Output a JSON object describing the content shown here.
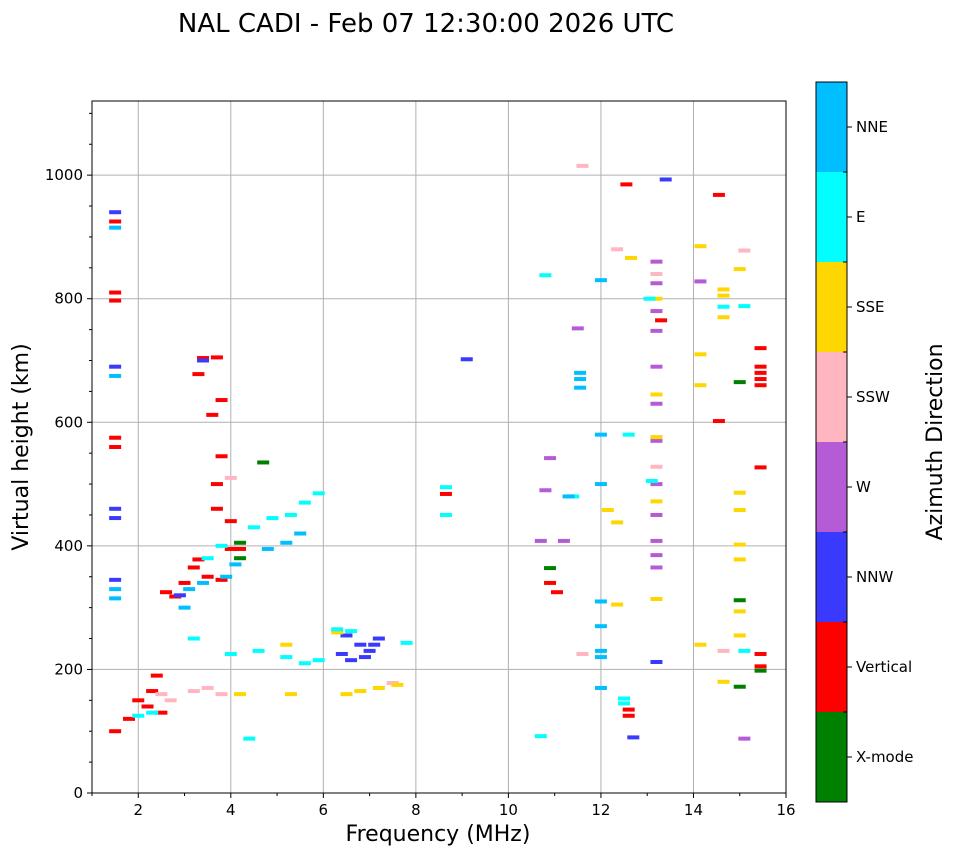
{
  "chart_data": {
    "type": "scatter",
    "title": "NAL CADI - Feb 07 12:30:00 2026 UTC",
    "xlabel": "Frequency (MHz)",
    "ylabel": "Virtual height (km)",
    "xlim": [
      1,
      16
    ],
    "ylim": [
      0,
      1120
    ],
    "x_ticks": [
      2,
      4,
      6,
      8,
      10,
      12,
      14,
      16
    ],
    "y_ticks": [
      0,
      200,
      400,
      600,
      800,
      1000
    ],
    "x_tick_labels": [
      "2",
      "4",
      "6",
      "8",
      "10",
      "12",
      "14",
      "16"
    ],
    "y_tick_labels": [
      "0",
      "200",
      "400",
      "600",
      "800",
      "1000"
    ],
    "grid": true,
    "colorbar": {
      "label": "Azimuth Direction",
      "categories": [
        {
          "name": "X-mode",
          "color": "#008000"
        },
        {
          "name": "Vertical",
          "color": "#ff0000"
        },
        {
          "name": "NNW",
          "color": "#3a3aff"
        },
        {
          "name": "W",
          "color": "#b55bd6"
        },
        {
          "name": "SSW",
          "color": "#ffb6c1"
        },
        {
          "name": "SSE",
          "color": "#ffd700"
        },
        {
          "name": "E",
          "color": "#00ffff"
        },
        {
          "name": "NNE",
          "color": "#00bfff"
        }
      ]
    },
    "series": [
      {
        "name": "Vertical",
        "color": "#ff0000",
        "points": [
          [
            1.5,
            925
          ],
          [
            1.5,
            810
          ],
          [
            1.5,
            797
          ],
          [
            1.5,
            575
          ],
          [
            1.5,
            560
          ],
          [
            1.5,
            100
          ],
          [
            2.6,
            325
          ],
          [
            2.8,
            318
          ],
          [
            3.0,
            340
          ],
          [
            3.2,
            365
          ],
          [
            3.5,
            350
          ],
          [
            3.8,
            345
          ],
          [
            4.0,
            395
          ],
          [
            3.3,
            378
          ],
          [
            3.7,
            460
          ],
          [
            3.7,
            500
          ],
          [
            3.8,
            545
          ],
          [
            4.0,
            440
          ],
          [
            4.2,
            395
          ],
          [
            3.4,
            704
          ],
          [
            3.7,
            705
          ],
          [
            3.3,
            678
          ],
          [
            3.8,
            636
          ],
          [
            3.6,
            612
          ],
          [
            2.2,
            140
          ],
          [
            2.3,
            165
          ],
          [
            2.4,
            190
          ],
          [
            2.5,
            130
          ],
          [
            1.8,
            120
          ],
          [
            2.0,
            150
          ],
          [
            8.65,
            484
          ],
          [
            10.9,
            340
          ],
          [
            11.05,
            325
          ],
          [
            12.55,
            985
          ],
          [
            12.6,
            135
          ],
          [
            12.6,
            125
          ],
          [
            13.3,
            765
          ],
          [
            14.55,
            968
          ],
          [
            14.55,
            602
          ],
          [
            15.45,
            720
          ],
          [
            15.45,
            690
          ],
          [
            15.45,
            680
          ],
          [
            15.45,
            670
          ],
          [
            15.45,
            660
          ],
          [
            15.45,
            527
          ],
          [
            15.45,
            225
          ],
          [
            15.45,
            205
          ]
        ]
      },
      {
        "name": "X-mode",
        "color": "#008000",
        "points": [
          [
            4.2,
            405
          ],
          [
            4.2,
            380
          ],
          [
            4.7,
            535
          ],
          [
            10.9,
            364
          ],
          [
            15.0,
            665
          ],
          [
            15.0,
            312
          ],
          [
            15.0,
            172
          ],
          [
            15.45,
            198
          ]
        ]
      },
      {
        "name": "NNW",
        "color": "#3a3aff",
        "points": [
          [
            1.5,
            940
          ],
          [
            1.5,
            690
          ],
          [
            1.5,
            460
          ],
          [
            1.5,
            445
          ],
          [
            1.5,
            345
          ],
          [
            2.9,
            320
          ],
          [
            3.4,
            700
          ],
          [
            6.4,
            225
          ],
          [
            6.6,
            215
          ],
          [
            6.8,
            240
          ],
          [
            7.0,
            230
          ],
          [
            7.2,
            250
          ],
          [
            6.5,
            255
          ],
          [
            6.9,
            220
          ],
          [
            7.1,
            240
          ],
          [
            9.1,
            702
          ],
          [
            13.4,
            993
          ],
          [
            13.2,
            212
          ],
          [
            12.7,
            90
          ]
        ]
      },
      {
        "name": "W",
        "color": "#b55bd6",
        "points": [
          [
            10.7,
            408
          ],
          [
            10.8,
            490
          ],
          [
            10.9,
            542
          ],
          [
            11.5,
            752
          ],
          [
            13.2,
            860
          ],
          [
            13.2,
            825
          ],
          [
            13.2,
            780
          ],
          [
            13.2,
            748
          ],
          [
            13.2,
            690
          ],
          [
            13.2,
            630
          ],
          [
            13.2,
            570
          ],
          [
            13.2,
            500
          ],
          [
            13.2,
            450
          ],
          [
            13.2,
            408
          ],
          [
            13.2,
            385
          ],
          [
            13.2,
            365
          ],
          [
            14.15,
            828
          ],
          [
            15.1,
            88
          ],
          [
            11.2,
            408
          ]
        ]
      },
      {
        "name": "SSW",
        "color": "#ffb6c1",
        "points": [
          [
            3.5,
            170
          ],
          [
            3.8,
            160
          ],
          [
            3.2,
            165
          ],
          [
            4.0,
            510
          ],
          [
            7.5,
            178
          ],
          [
            11.6,
            1015
          ],
          [
            11.6,
            225
          ],
          [
            12.35,
            880
          ],
          [
            13.2,
            840
          ],
          [
            13.2,
            528
          ],
          [
            15.1,
            878
          ],
          [
            14.65,
            230
          ],
          [
            2.7,
            150
          ],
          [
            2.5,
            160
          ]
        ]
      },
      {
        "name": "SSE",
        "color": "#ffd700",
        "points": [
          [
            4.2,
            160
          ],
          [
            5.3,
            160
          ],
          [
            6.5,
            160
          ],
          [
            6.8,
            165
          ],
          [
            7.2,
            170
          ],
          [
            7.6,
            175
          ],
          [
            5.2,
            240
          ],
          [
            12.15,
            458
          ],
          [
            12.35,
            438
          ],
          [
            12.35,
            305
          ],
          [
            12.65,
            866
          ],
          [
            13.2,
            800
          ],
          [
            13.2,
            645
          ],
          [
            13.2,
            576
          ],
          [
            13.2,
            472
          ],
          [
            13.2,
            314
          ],
          [
            14.15,
            885
          ],
          [
            14.15,
            710
          ],
          [
            14.15,
            660
          ],
          [
            14.15,
            240
          ],
          [
            14.65,
            815
          ],
          [
            14.65,
            805
          ],
          [
            14.65,
            770
          ],
          [
            14.65,
            180
          ],
          [
            15.0,
            848
          ],
          [
            15.0,
            486
          ],
          [
            15.0,
            458
          ],
          [
            15.0,
            402
          ],
          [
            15.0,
            378
          ],
          [
            15.0,
            294
          ],
          [
            15.0,
            255
          ],
          [
            6.3,
            260
          ]
        ]
      },
      {
        "name": "E",
        "color": "#00ffff",
        "points": [
          [
            3.5,
            380
          ],
          [
            3.8,
            400
          ],
          [
            4.5,
            430
          ],
          [
            4.9,
            445
          ],
          [
            5.3,
            450
          ],
          [
            5.6,
            470
          ],
          [
            5.9,
            485
          ],
          [
            4.0,
            225
          ],
          [
            4.6,
            230
          ],
          [
            5.2,
            220
          ],
          [
            5.6,
            210
          ],
          [
            5.9,
            215
          ],
          [
            6.3,
            265
          ],
          [
            6.6,
            262
          ],
          [
            3.2,
            250
          ],
          [
            2.0,
            125
          ],
          [
            2.3,
            130
          ],
          [
            10.8,
            838
          ],
          [
            11.4,
            480
          ],
          [
            12.6,
            580
          ],
          [
            12.5,
            153
          ],
          [
            12.5,
            145
          ],
          [
            13.05,
            800
          ],
          [
            13.1,
            505
          ],
          [
            14.65,
            787
          ],
          [
            15.1,
            788
          ],
          [
            15.1,
            230
          ],
          [
            10.7,
            92
          ],
          [
            8.65,
            495
          ],
          [
            8.65,
            450
          ],
          [
            7.8,
            243
          ],
          [
            4.4,
            88
          ]
        ]
      },
      {
        "name": "NNE",
        "color": "#00bfff",
        "points": [
          [
            1.5,
            915
          ],
          [
            1.5,
            675
          ],
          [
            1.5,
            330
          ],
          [
            1.5,
            315
          ],
          [
            3.1,
            330
          ],
          [
            3.4,
            340
          ],
          [
            3.9,
            350
          ],
          [
            4.1,
            370
          ],
          [
            4.8,
            395
          ],
          [
            5.2,
            405
          ],
          [
            5.5,
            420
          ],
          [
            3.0,
            300
          ],
          [
            11.55,
            680
          ],
          [
            11.55,
            670
          ],
          [
            11.55,
            656
          ],
          [
            12.0,
            580
          ],
          [
            12.0,
            500
          ],
          [
            12.0,
            310
          ],
          [
            12.0,
            270
          ],
          [
            12.0,
            230
          ],
          [
            12.0,
            220
          ],
          [
            12.0,
            170
          ],
          [
            12.0,
            830
          ],
          [
            11.3,
            480
          ]
        ]
      }
    ]
  }
}
